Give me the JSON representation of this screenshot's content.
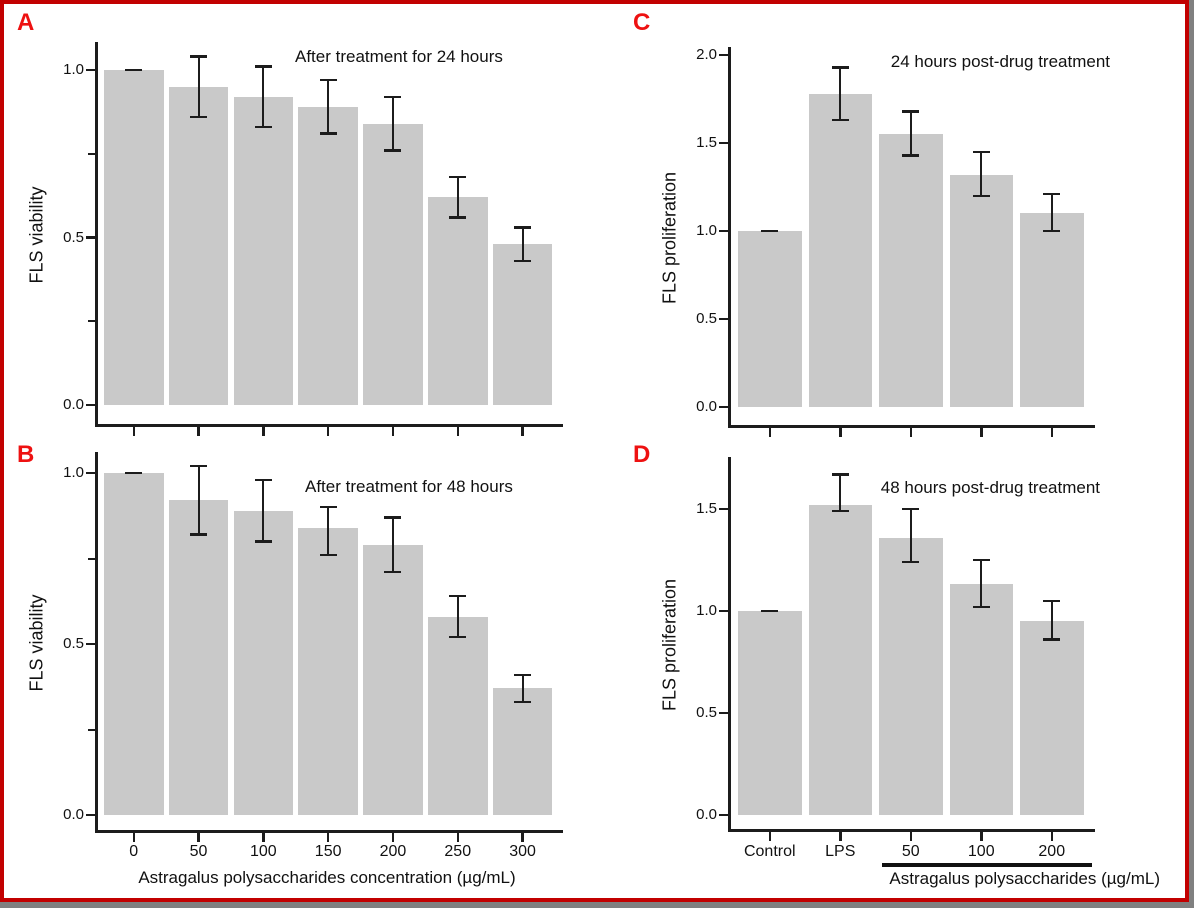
{
  "figure": {
    "colors": {
      "bar_fill": "#c9c9c9",
      "axis": "#1c1c1c",
      "panel_label": "#ee1111",
      "frame_border": "#c20000",
      "frame_shadow": "#808080",
      "background": "#ffffff"
    }
  },
  "chart_data": [
    {
      "id": "A",
      "panel_label": "A",
      "type": "bar",
      "title": "After treatment for 24 hours",
      "ylabel": "FLS viability",
      "xlabel": "",
      "categories": [
        "0",
        "50",
        "100",
        "150",
        "200",
        "250",
        "300"
      ],
      "values": [
        1.0,
        0.95,
        0.92,
        0.89,
        0.84,
        0.62,
        0.48
      ],
      "error_low": [
        1.0,
        0.86,
        0.83,
        0.81,
        0.76,
        0.56,
        0.43
      ],
      "error_high": [
        1.0,
        1.04,
        1.01,
        0.97,
        0.92,
        0.68,
        0.53
      ],
      "yticks": [
        {
          "v": 1.0,
          "label": "1.0"
        },
        {
          "v": 0.5,
          "label": "0.5"
        },
        {
          "v": 0.0,
          "label": "0.0"
        }
      ],
      "minor_yticks": [
        0.75,
        0.25
      ],
      "ylim": [
        0,
        1.12
      ],
      "x_tick_labels_visible": false,
      "grid": false,
      "legend": "none"
    },
    {
      "id": "B",
      "panel_label": "B",
      "type": "bar",
      "title": "After treatment for 48 hours",
      "ylabel": "FLS viability",
      "xlabel": "Astragalus polysaccharides concentration (µg/mL)",
      "categories": [
        "0",
        "50",
        "100",
        "150",
        "200",
        "250",
        "300"
      ],
      "values": [
        1.0,
        0.92,
        0.89,
        0.84,
        0.79,
        0.58,
        0.37
      ],
      "error_low": [
        1.0,
        0.82,
        0.8,
        0.76,
        0.71,
        0.52,
        0.33
      ],
      "error_high": [
        1.0,
        1.02,
        0.98,
        0.9,
        0.87,
        0.64,
        0.41
      ],
      "yticks": [
        {
          "v": 1.0,
          "label": "1.0"
        },
        {
          "v": 0.5,
          "label": "0.5"
        },
        {
          "v": 0.0,
          "label": "0.0"
        }
      ],
      "minor_yticks": [
        0.75,
        0.25
      ],
      "ylim": [
        0,
        1.11
      ],
      "x_tick_labels_visible": true,
      "grid": false,
      "legend": "none"
    },
    {
      "id": "C",
      "panel_label": "C",
      "type": "bar",
      "title": "24 hours post-drug treatment",
      "ylabel": "FLS proliferation",
      "xlabel": "",
      "categories": [
        "Control",
        "LPS",
        "50",
        "100",
        "200"
      ],
      "values": [
        1.0,
        1.78,
        1.55,
        1.32,
        1.1
      ],
      "error_low": [
        1.0,
        1.63,
        1.43,
        1.2,
        1.0
      ],
      "error_high": [
        1.0,
        1.93,
        1.68,
        1.45,
        1.21
      ],
      "yticks": [
        {
          "v": 2.0,
          "label": "2.0"
        },
        {
          "v": 1.5,
          "label": "1.5"
        },
        {
          "v": 1.0,
          "label": "1.0"
        },
        {
          "v": 0.5,
          "label": "0.5"
        },
        {
          "v": 0.0,
          "label": "0.0"
        }
      ],
      "minor_yticks": [],
      "ylim": [
        0,
        2.06
      ],
      "x_tick_labels_visible": false,
      "grid": false,
      "legend": "none"
    },
    {
      "id": "D",
      "panel_label": "D",
      "type": "bar",
      "title": "48 hours post-drug treatment",
      "ylabel": "FLS proliferation",
      "xlabel": "Astragalus polysaccharides (µg/mL)",
      "categories": [
        "Control",
        "LPS",
        "50",
        "100",
        "200"
      ],
      "values": [
        1.0,
        1.52,
        1.36,
        1.13,
        0.95
      ],
      "error_low": [
        1.0,
        1.49,
        1.24,
        1.02,
        0.86
      ],
      "error_high": [
        1.0,
        1.67,
        1.5,
        1.25,
        1.05
      ],
      "yticks": [
        {
          "v": 1.5,
          "label": "1.5"
        },
        {
          "v": 1.0,
          "label": "1.0"
        },
        {
          "v": 0.5,
          "label": "0.5"
        },
        {
          "v": 0.0,
          "label": "0.0"
        }
      ],
      "minor_yticks": [],
      "ylim": [
        0,
        1.76
      ],
      "x_tick_labels_visible": true,
      "group_underline": {
        "from_index": 2,
        "to_index": 4
      },
      "grid": false,
      "legend": "none"
    }
  ]
}
